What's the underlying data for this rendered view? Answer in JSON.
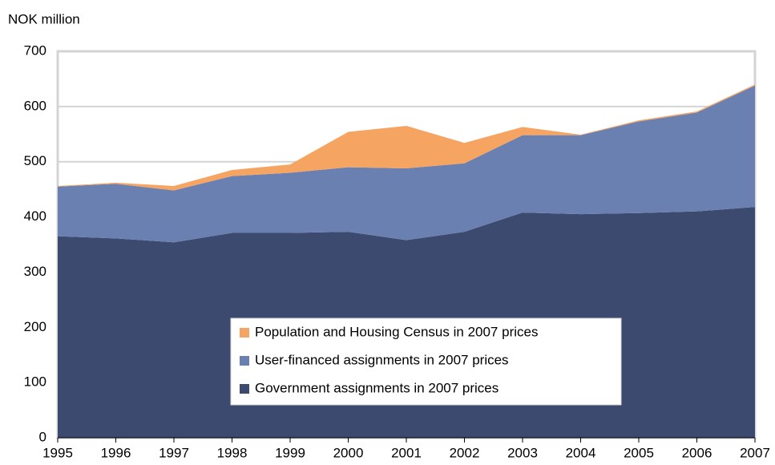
{
  "chart_data": {
    "type": "stacked_area",
    "y_axis_label": "NOK million",
    "x": [
      1995,
      1996,
      1997,
      1998,
      1999,
      2000,
      2001,
      2002,
      2003,
      2004,
      2005,
      2006,
      2007
    ],
    "xlim": [
      1995,
      2007
    ],
    "xticks": [
      1995,
      1996,
      1997,
      1998,
      1999,
      2000,
      2001,
      2002,
      2003,
      2004,
      2005,
      2006,
      2007
    ],
    "ylim": [
      0,
      700
    ],
    "yticks": [
      0,
      100,
      200,
      300,
      400,
      500,
      600,
      700
    ],
    "grid": true,
    "legend": "center",
    "series": [
      {
        "name": "Government assignments in 2007 prices",
        "color": "#3b4a6e",
        "values": [
          365,
          361,
          354,
          371,
          371,
          373,
          358,
          373,
          408,
          405,
          407,
          410,
          418
        ]
      },
      {
        "name": "User-financed assignments in 2007 prices",
        "color": "#6a80b0",
        "values": [
          90,
          99,
          94,
          103,
          109,
          117,
          130,
          124,
          140,
          143,
          166,
          179,
          220
        ]
      },
      {
        "name": "Population and Housing Census in 2007 prices",
        "color": "#f5a462",
        "values": [
          1,
          2,
          8,
          11,
          15,
          64,
          77,
          37,
          15,
          1,
          2,
          2,
          2
        ]
      }
    ]
  }
}
